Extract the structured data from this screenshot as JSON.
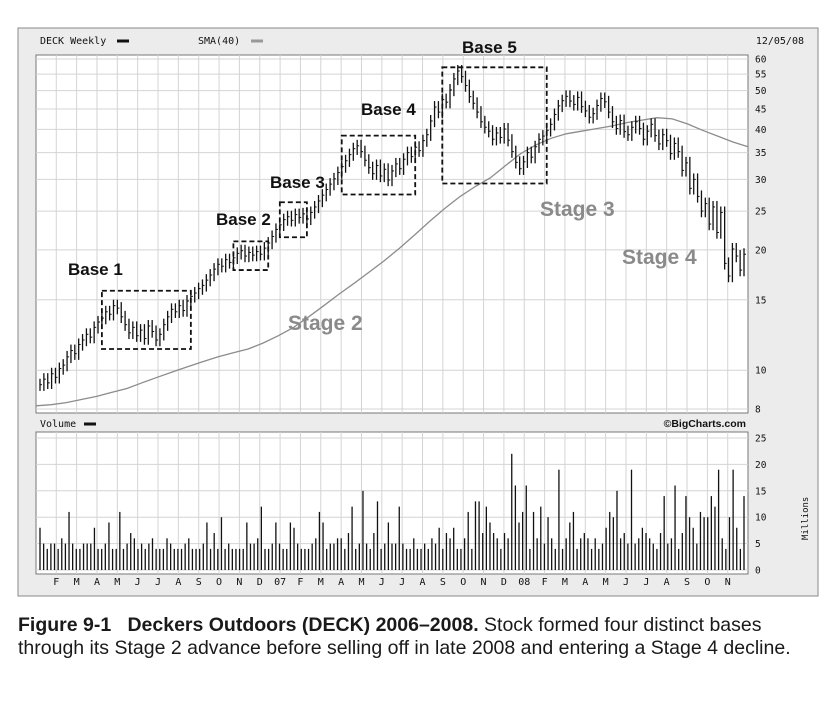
{
  "chart_data": {
    "type": "line",
    "header": {
      "symbol_label": "DECK Weekly",
      "sma_label": "SMA(40)",
      "date": "12/05/08"
    },
    "price_axis": {
      "scale": "log",
      "range": [
        8,
        60
      ],
      "ticks": [
        60,
        55,
        50,
        45,
        40,
        35,
        30,
        25,
        20,
        15,
        10,
        8
      ]
    },
    "volume_panel": {
      "label": "Volume",
      "source": "©BigCharts.com",
      "unit_label": "Millions",
      "range": [
        0,
        25
      ],
      "ticks": [
        25,
        20,
        15,
        10,
        5,
        0
      ],
      "values": [
        8,
        5,
        4,
        5,
        5,
        4,
        6,
        5,
        11,
        5,
        4,
        4,
        5,
        5,
        5,
        8,
        4,
        4,
        5,
        9,
        4,
        4,
        11,
        4,
        5,
        7,
        6,
        4,
        5,
        4,
        5,
        6,
        4,
        4,
        4,
        6,
        5,
        4,
        4,
        4,
        5,
        6,
        4,
        4,
        4,
        5,
        9,
        4,
        7,
        4,
        10,
        4,
        5,
        4,
        4,
        4,
        4,
        9,
        5,
        5,
        6,
        12,
        4,
        4,
        5,
        9,
        5,
        4,
        4,
        9,
        8,
        5,
        4,
        4,
        4,
        5,
        6,
        11,
        9,
        4,
        5,
        5,
        6,
        6,
        4,
        7,
        12,
        4,
        5,
        15,
        5,
        4,
        7,
        13,
        4,
        5,
        9,
        5,
        5,
        12,
        5,
        4,
        4,
        6,
        4,
        4,
        5,
        4,
        6,
        5,
        8,
        4,
        7,
        6,
        8,
        4,
        4,
        6,
        11,
        4,
        13,
        13,
        7,
        12,
        9,
        7,
        6,
        4,
        7,
        6,
        22,
        16,
        9,
        11,
        16,
        4,
        11,
        6,
        12,
        5,
        10,
        6,
        4,
        19,
        4,
        6,
        9,
        11,
        4,
        6,
        7,
        6,
        4,
        6,
        4,
        5,
        8,
        11,
        10,
        15,
        6,
        7,
        5,
        19,
        5,
        6,
        8,
        7,
        6,
        5,
        4,
        7,
        14,
        5,
        6,
        16,
        4,
        7,
        14,
        10,
        8,
        5,
        11,
        10,
        10,
        14,
        12,
        19,
        6,
        4,
        10,
        19,
        8,
        4,
        14
      ]
    },
    "x_axis": {
      "months": [
        "F",
        "M",
        "A",
        "M",
        "J",
        "J",
        "A",
        "S",
        "O",
        "N",
        "D",
        "07",
        "F",
        "M",
        "A",
        "M",
        "J",
        "J",
        "A",
        "S",
        "O",
        "N",
        "D",
        "08",
        "F",
        "M",
        "A",
        "M",
        "J",
        "J",
        "A",
        "S",
        "O",
        "N"
      ]
    },
    "series": [
      {
        "name": "DECK Weekly",
        "values": [
          9.2,
          9.5,
          9.3,
          9.8,
          9.6,
          10.1,
          10.3,
          10.8,
          11.2,
          11.0,
          11.6,
          11.9,
          12.3,
          12.1,
          12.8,
          13.2,
          13.5,
          14.0,
          13.8,
          14.5,
          14.3,
          13.6,
          13.0,
          12.4,
          12.8,
          12.2,
          12.6,
          12.0,
          12.9,
          12.5,
          11.9,
          12.3,
          13.0,
          13.6,
          14.2,
          14.0,
          14.5,
          14.1,
          14.9,
          15.3,
          15.6,
          16.0,
          16.3,
          16.8,
          17.3,
          17.9,
          18.4,
          18.2,
          18.9,
          18.6,
          19.1,
          19.6,
          19.9,
          19.3,
          19.7,
          19.4,
          19.8,
          19.5,
          20.2,
          20.8,
          21.6,
          22.5,
          23.1,
          23.8,
          24.2,
          23.7,
          24.5,
          24.1,
          24.6,
          23.9,
          24.8,
          25.6,
          26.5,
          27.4,
          28.3,
          29.2,
          30.1,
          31.2,
          32.3,
          33.4,
          34.6,
          35.8,
          36.4,
          35.2,
          33.5,
          32.1,
          31.0,
          32.5,
          30.6,
          31.8,
          29.9,
          31.5,
          32.8,
          31.9,
          33.7,
          35.0,
          34.2,
          36.1,
          35.4,
          37.5,
          38.8,
          42.0,
          45.5,
          44.2,
          47.5,
          46.8,
          50.2,
          53.5,
          56.0,
          54.2,
          51.5,
          48.3,
          46.5,
          44.2,
          41.8,
          40.5,
          39.6,
          37.8,
          39.2,
          38.2,
          40.1,
          37.6,
          35.2,
          33.1,
          31.9,
          33.2,
          35.0,
          34.1,
          36.2,
          37.8,
          38.5,
          39.8,
          41.2,
          43.6,
          45.8,
          47.2,
          48.4,
          47.1,
          46.2,
          48.1,
          45.6,
          44.5,
          42.9,
          43.8,
          45.9,
          47.8,
          46.9,
          44.2,
          41.8,
          40.2,
          42.1,
          39.5,
          38.8,
          40.5,
          41.8,
          40.2,
          37.8,
          39.6,
          41.2,
          38.6,
          36.8,
          38.8,
          37.5,
          34.8,
          36.9,
          35.2,
          31.6,
          33.0,
          28.5,
          30.0,
          27.2,
          25.0,
          26.1,
          23.2,
          25.6,
          22.1,
          24.8,
          18.5,
          17.2,
          20.1,
          19.3,
          17.8,
          19.5
        ]
      },
      {
        "name": "SMA(40)",
        "values": [
          8.15,
          8.2,
          8.3,
          8.45,
          8.6,
          8.8,
          9.0,
          9.3,
          9.6,
          9.9,
          10.2,
          10.5,
          10.8,
          11.05,
          11.3,
          11.7,
          12.2,
          12.8,
          13.6,
          14.5,
          15.5,
          16.5,
          17.6,
          18.8,
          20.2,
          21.8,
          23.6,
          25.4,
          27.2,
          28.8,
          30.3,
          32.5,
          34.8,
          36.6,
          38.0,
          39.0,
          39.6,
          40.2,
          40.8,
          41.6,
          42.2,
          42.8,
          42.5,
          41.3,
          39.8,
          38.5,
          37.2,
          36.2
        ]
      }
    ],
    "annotations": [
      {
        "text": "Base 1"
      },
      {
        "text": "Base 2"
      },
      {
        "text": "Base 3"
      },
      {
        "text": "Base 4"
      },
      {
        "text": "Base 5"
      },
      {
        "text": "Stage 2"
      },
      {
        "text": "Stage 3"
      },
      {
        "text": "Stage 4"
      }
    ]
  },
  "caption": {
    "label": "Figure 9-1",
    "title": "Deckers Outdoors (DECK) 2006–2008.",
    "text": "Stock formed four distinct bases through its Stage 2 advance before selling off in late 2008 and entering a Stage 4 decline."
  }
}
